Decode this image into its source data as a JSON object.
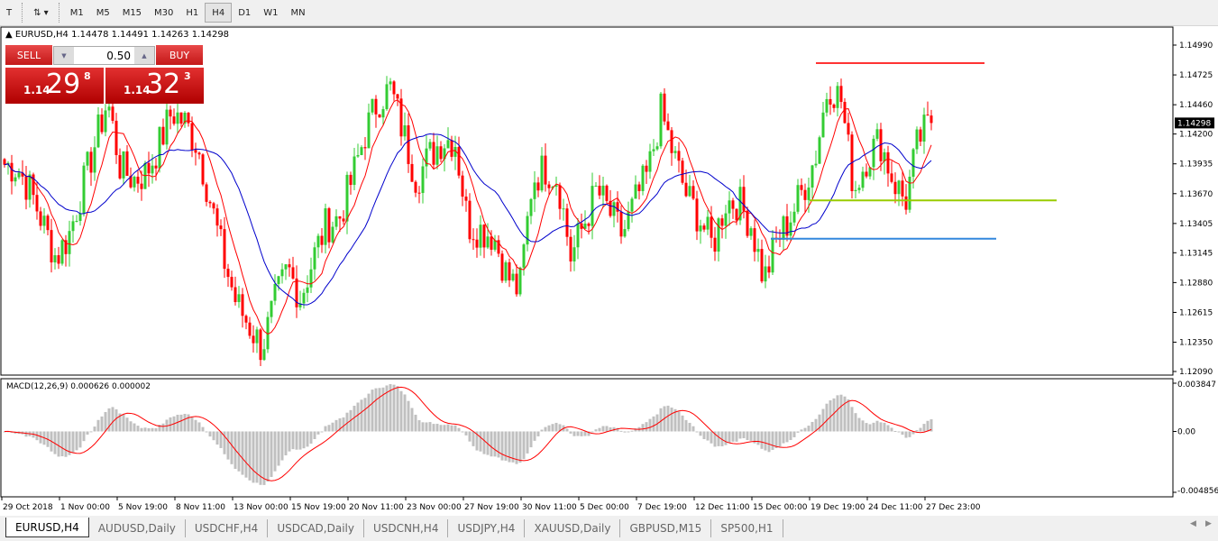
{
  "toolbar": {
    "timeframes": [
      "M1",
      "M5",
      "M15",
      "M30",
      "H1",
      "H4",
      "D1",
      "W1",
      "MN"
    ],
    "active": "H4"
  },
  "header": {
    "symbol": "EURUSD,H4",
    "ohlc": "1.14478 1.14491 1.14263 1.14298"
  },
  "one_click": {
    "sell_label": "SELL",
    "buy_label": "BUY",
    "lot": "0.50",
    "sell_prefix": "1.14",
    "sell_big": "29",
    "sell_sup": "8",
    "buy_prefix": "1.14",
    "buy_big": "32",
    "buy_sup": "3"
  },
  "price_axis": {
    "ticks": [
      "1.14990",
      "1.14725",
      "1.14460",
      "1.14200",
      "1.13935",
      "1.13670",
      "1.13405",
      "1.13145",
      "1.12880",
      "1.12615",
      "1.12350",
      "1.12090"
    ],
    "current": "1.14298"
  },
  "macd": {
    "label": "MACD(12,26,9) 0.000626 0.000002",
    "ticks": [
      "0.003847",
      "0.00",
      "-0.004856"
    ]
  },
  "time_axis": [
    "29 Oct 2018",
    "1 Nov 00:00",
    "5 Nov 19:00",
    "8 Nov 11:00",
    "13 Nov 00:00",
    "15 Nov 19:00",
    "20 Nov 11:00",
    "23 Nov 00:00",
    "27 Nov 19:00",
    "30 Nov 11:00",
    "5 Dec 00:00",
    "7 Dec 19:00",
    "12 Dec 11:00",
    "15 Dec 00:00",
    "19 Dec 19:00",
    "24 Dec 11:00",
    "27 Dec 23:00"
  ],
  "tabs": [
    "EURUSD,H4",
    "AUDUSD,Daily",
    "USDCHF,H4",
    "USDCAD,Daily",
    "USDCNH,H4",
    "USDJPY,H4",
    "XAUUSD,Daily",
    "GBPUSD,M15",
    "SP500,H1"
  ],
  "active_tab": "EURUSD,H4",
  "colors": {
    "bull": "#33cc33",
    "bear": "#ff0000",
    "ma_fast": "#ff0000",
    "ma_slow": "#0000cc",
    "macd_hist": "#c0c0c0",
    "macd_signal": "#ff0000"
  },
  "chart_data": {
    "type": "candlestick",
    "price_range": [
      1.1209,
      1.1499
    ],
    "price_path": [
      1.1393,
      1.139,
      1.137,
      1.134,
      1.131,
      1.133,
      1.137,
      1.141,
      1.145,
      1.139,
      1.138,
      1.1385,
      1.141,
      1.144,
      1.143,
      1.141,
      1.136,
      1.131,
      1.127,
      1.125,
      1.123,
      1.127,
      1.13,
      1.1275,
      1.131,
      1.134,
      1.1345,
      1.138,
      1.142,
      1.145,
      1.146,
      1.142,
      1.138,
      1.14,
      1.1415,
      1.1415,
      1.134,
      1.1335,
      1.133,
      1.1295,
      1.128,
      1.138,
      1.139,
      1.138,
      1.131,
      1.134,
      1.137,
      1.135,
      1.133,
      1.136,
      1.1385,
      1.144,
      1.14,
      1.1365,
      1.1345,
      1.132,
      1.136,
      1.136,
      1.134,
      1.129,
      1.1325,
      1.1345,
      1.137,
      1.14,
      1.1465,
      1.145,
      1.137,
      1.14,
      1.1415,
      1.138,
      1.136,
      1.1415,
      1.143
    ],
    "horizontal_lines": [
      {
        "price": 1.1483,
        "color": "#ff3333"
      },
      {
        "price": 1.1361,
        "color": "#99cc00"
      },
      {
        "price": 1.1327,
        "color": "#3388dd"
      }
    ]
  }
}
